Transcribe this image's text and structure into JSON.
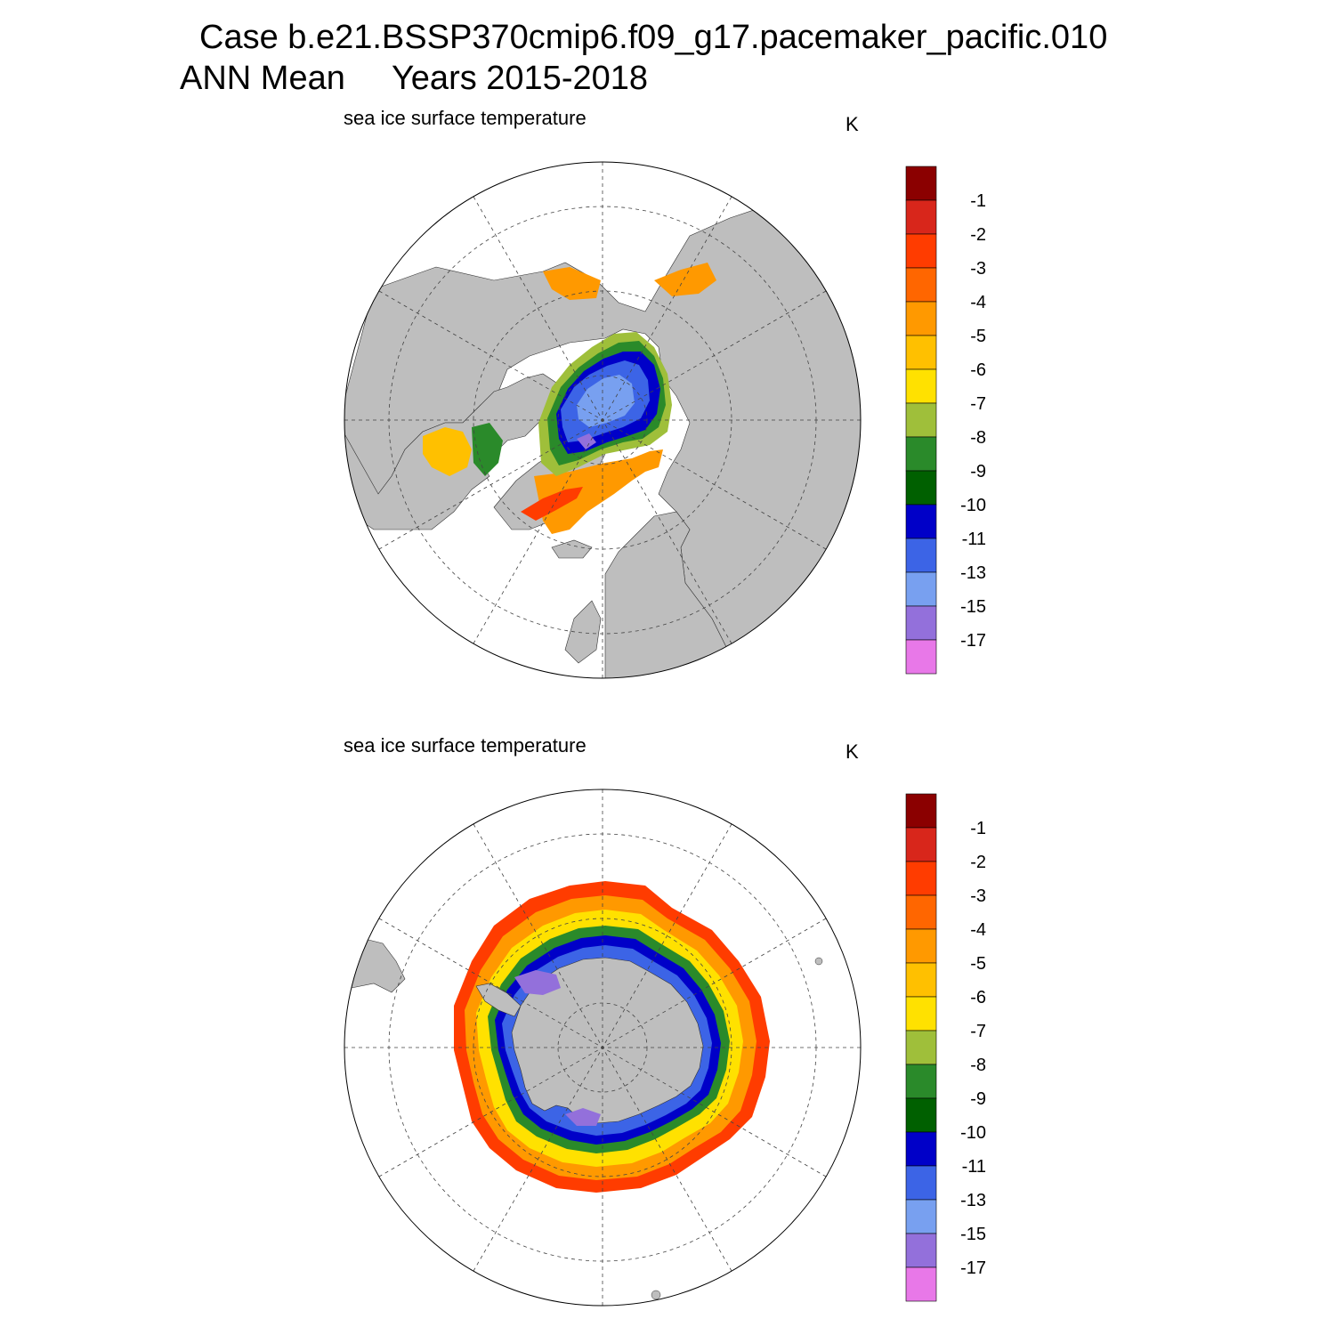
{
  "header": {
    "title_line1": "Case b.e21.BSSP370cmip6.f09_g17.pacemaker_pacific.010",
    "title_line2": "ANN Mean     Years 2015-2018"
  },
  "panels": [
    {
      "id": "north",
      "subtitle": "sea ice surface temperature",
      "unit": "K"
    },
    {
      "id": "south",
      "subtitle": "sea ice surface temperature",
      "unit": "K"
    }
  ],
  "colorbar": {
    "labels": [
      "-1",
      "-2",
      "-3",
      "-4",
      "-5",
      "-6",
      "-7",
      "-8",
      "-9",
      "-10",
      "-11",
      "-13",
      "-15",
      "-17"
    ],
    "colors": [
      "#8b0000",
      "#d8261b",
      "#ff3c00",
      "#ff6600",
      "#ff9900",
      "#ffc000",
      "#ffe100",
      "#9fbf3a",
      "#2a8a2a",
      "#006000",
      "#0000c8",
      "#3c64e6",
      "#78a0f0",
      "#9370db",
      "#e878e8"
    ]
  },
  "colors": {
    "land": "#bebebe",
    "ocean": "#ffffff",
    "grid": "#444444"
  }
}
